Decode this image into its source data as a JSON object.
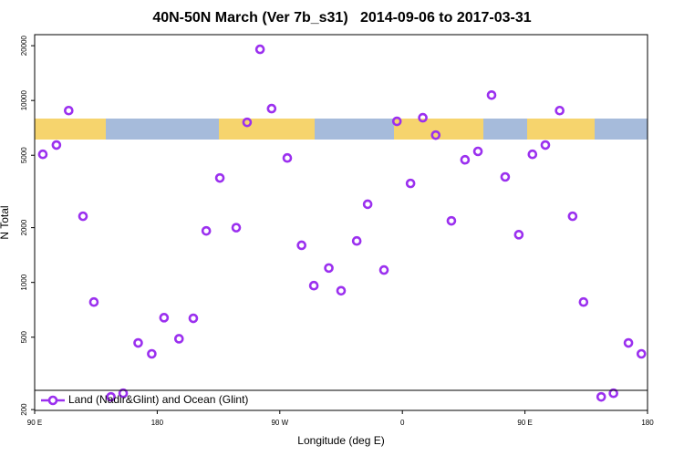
{
  "chart_data": {
    "type": "scatter",
    "title": "40N-50N March (Ver 7b_s31)   2014-09-06 to 2017-03-31",
    "x_label": "Longitude (deg E)",
    "y_label": "N Total",
    "log_y": true,
    "legend": "bottom-left",
    "xlim": [
      90,
      540
    ],
    "ylim": [
      198,
      23000
    ],
    "xticks": [
      {
        "value": 90,
        "label": "90 E"
      },
      {
        "value": 180,
        "label": "180"
      },
      {
        "value": 270,
        "label": "90 W"
      },
      {
        "value": 360,
        "label": "0"
      },
      {
        "value": 450,
        "label": "90 E"
      },
      {
        "value": 540,
        "label": "180"
      }
    ],
    "yticks": [
      200,
      500,
      1000,
      2000,
      5000,
      10000,
      20000
    ],
    "series": [
      {
        "name": "Land (Nadir&Glint) and Ocean (Glint)",
        "color": "#9b30ef",
        "x": [
          96,
          106,
          115,
          125.5,
          133.5,
          146,
          155,
          166,
          176,
          185,
          196,
          206.5,
          216,
          226,
          238,
          246,
          255.5,
          264,
          275.5,
          286,
          295,
          306,
          315,
          326.5,
          334.5,
          346.5,
          356,
          366,
          375,
          384.5,
          396,
          406,
          415.5,
          425.5,
          435.5,
          445.5,
          455.5,
          465,
          475.5,
          485,
          493,
          506,
          515,
          526,
          535.5
        ],
        "values": [
          5060,
          5690,
          8800,
          2310,
          780,
          235,
          246,
          465,
          405,
          640,
          490,
          635,
          1920,
          3750,
          2000,
          7580,
          19100,
          9020,
          4830,
          1600,
          960,
          1200,
          900,
          1690,
          2690,
          1170,
          7680,
          3500,
          8040,
          6450,
          2180,
          4720,
          5250,
          10700,
          3800,
          1830,
          5060,
          5690,
          8800,
          2310,
          780,
          235,
          246,
          465,
          405
        ]
      }
    ]
  }
}
